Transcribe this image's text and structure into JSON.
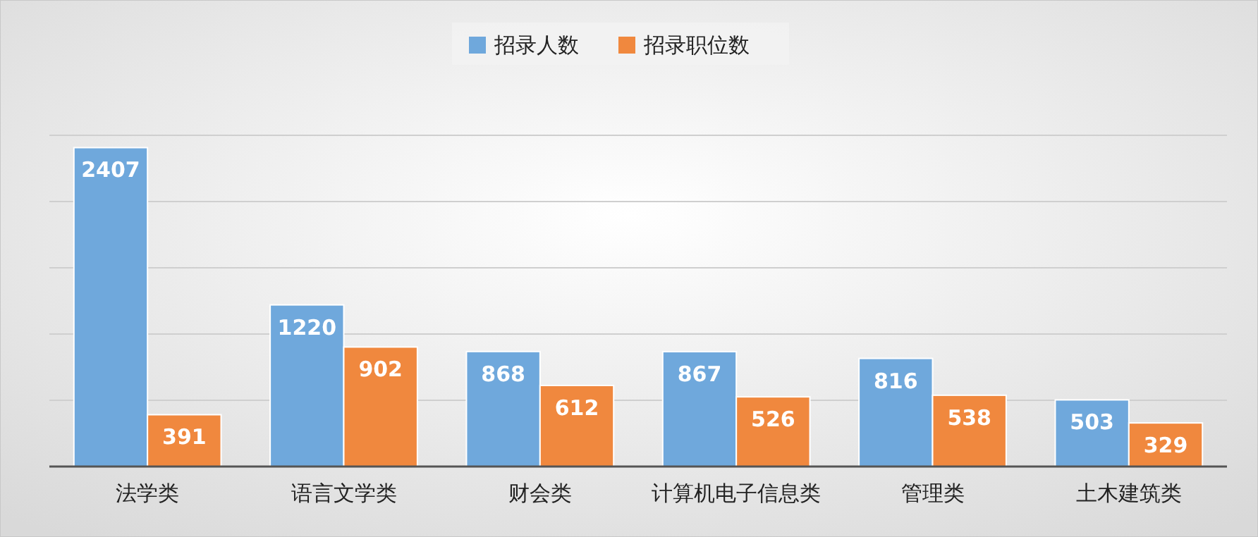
{
  "chart_data": {
    "type": "bar",
    "categories": [
      "法学类",
      "语言文学类",
      "财会类",
      "计算机电子信息类",
      "管理类",
      "土木建筑类"
    ],
    "series": [
      {
        "name": "招录人数",
        "color": "#6fa8dc",
        "values": [
          2407,
          1220,
          868,
          867,
          816,
          503
        ]
      },
      {
        "name": "招录职位数",
        "color": "#f0883e",
        "values": [
          391,
          902,
          612,
          526,
          538,
          329
        ]
      }
    ],
    "yticks": [
      {
        "value": 0,
        "label": null
      },
      {
        "value": 500,
        "label": null
      },
      {
        "value": 1000,
        "label": null
      },
      {
        "value": 1500,
        "label": null
      },
      {
        "value": 2000,
        "label": null
      },
      {
        "value": 2500,
        "label": null
      }
    ],
    "grid": "y",
    "legend": "top",
    "data_labels": true,
    "tick_labels": "x"
  }
}
